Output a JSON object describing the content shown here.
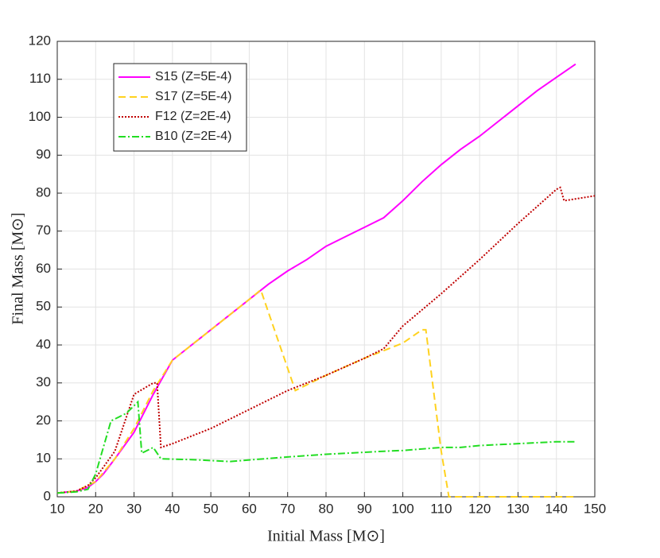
{
  "chart_data": {
    "type": "line",
    "xlabel": "Initial Mass [M⊙]",
    "ylabel": "Final Mass [M⊙]",
    "xlim": [
      10,
      150
    ],
    "ylim": [
      0,
      120
    ],
    "xticks": [
      10,
      20,
      30,
      40,
      50,
      60,
      70,
      80,
      90,
      100,
      110,
      120,
      130,
      140,
      150
    ],
    "yticks": [
      0,
      10,
      20,
      30,
      40,
      50,
      60,
      70,
      80,
      90,
      100,
      110,
      120
    ],
    "grid": true,
    "legend": "upper left",
    "series": [
      {
        "name": "S15 (Z=5E-4)",
        "color": "#ff00ff",
        "linestyle": "solid",
        "x": [
          10,
          15,
          18,
          20,
          22,
          25,
          30,
          35,
          40,
          45,
          50,
          55,
          60,
          65,
          70,
          75,
          80,
          85,
          90,
          95,
          100,
          105,
          110,
          115,
          120,
          125,
          130,
          135,
          140,
          145
        ],
        "values": [
          1,
          1.5,
          2.5,
          4,
          6,
          10,
          17,
          27,
          36,
          40,
          44,
          48,
          52,
          56,
          59.5,
          62.5,
          66,
          68.5,
          71,
          73.5,
          78,
          83,
          87.5,
          91.5,
          95,
          99,
          103,
          107,
          110.5,
          114
        ]
      },
      {
        "name": "S17 (Z=5E-4)",
        "color": "#ffd21f",
        "linestyle": "dashed",
        "x": [
          10,
          15,
          20,
          25,
          30,
          35,
          40,
          50,
          60,
          63,
          72,
          80,
          90,
          95,
          100,
          105,
          106,
          110,
          112,
          145
        ],
        "values": [
          1,
          1.5,
          4,
          10,
          18,
          28,
          36,
          44,
          52,
          54.5,
          28,
          32,
          36.5,
          38.5,
          40.5,
          44,
          44,
          12,
          0,
          0
        ]
      },
      {
        "name": "F12 (Z=2E-4)",
        "color": "#c00000",
        "linestyle": "dotted",
        "x": [
          10,
          15,
          18,
          20,
          25,
          30,
          35,
          36,
          37,
          40,
          50,
          60,
          70,
          80,
          90,
          95,
          100,
          110,
          120,
          130,
          140,
          141,
          142,
          150
        ],
        "values": [
          1,
          1.5,
          3,
          5,
          12,
          27,
          30,
          30,
          13,
          14,
          18,
          23,
          28,
          32,
          36.5,
          39,
          45,
          53.5,
          62.5,
          72,
          81,
          81.5,
          78,
          79.3
        ]
      },
      {
        "name": "B10 (Z=2E-4)",
        "color": "#22dd22",
        "linestyle": "dashdot",
        "x": [
          10,
          15,
          18,
          20,
          24,
          28,
          31,
          32,
          35,
          37,
          45,
          55,
          70,
          80,
          95,
          100,
          110,
          115,
          120,
          130,
          140,
          145
        ],
        "values": [
          1,
          1.3,
          2,
          6,
          20,
          22,
          25,
          11.5,
          13,
          10,
          9.8,
          9.3,
          10.5,
          11.2,
          12,
          12.2,
          13,
          13,
          13.5,
          14,
          14.5,
          14.5
        ]
      }
    ]
  }
}
